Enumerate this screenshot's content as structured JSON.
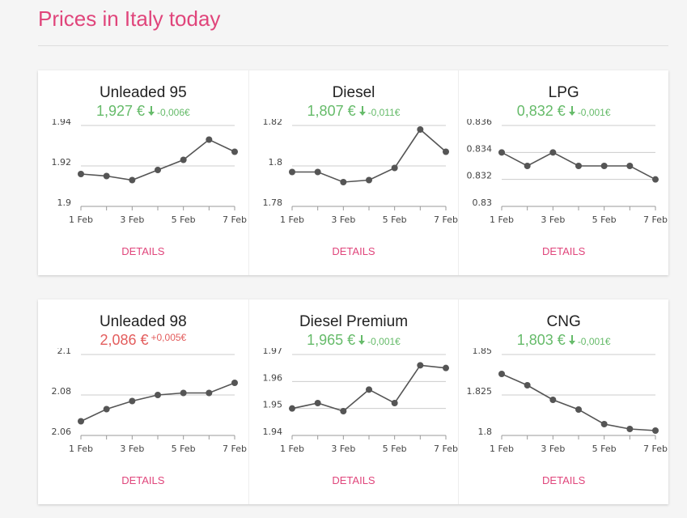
{
  "page": {
    "title": "Prices in Italy today",
    "title_color": "#e0457b"
  },
  "chart_data": [
    {
      "type": "line",
      "title": "Unleaded 95",
      "price": "1,927 €",
      "change": "-0,006€",
      "trend": "down",
      "price_color": "#66bb6a",
      "color": "#555555",
      "categories": [
        "1 Feb",
        null,
        "3 Feb",
        null,
        "5 Feb",
        null,
        "7 Feb"
      ],
      "values": [
        1.916,
        1.915,
        1.913,
        1.918,
        1.923,
        1.933,
        1.927
      ],
      "ylim": [
        1.9,
        1.94
      ],
      "yticks": [
        1.9,
        1.92,
        1.94
      ],
      "grid": true,
      "button": "DETAILS"
    },
    {
      "type": "line",
      "title": "Diesel",
      "price": "1,807 €",
      "change": "-0,011€",
      "trend": "down",
      "price_color": "#66bb6a",
      "color": "#555555",
      "categories": [
        "1 Feb",
        null,
        "3 Feb",
        null,
        "5 Feb",
        null,
        "7 Feb"
      ],
      "values": [
        1.797,
        1.797,
        1.792,
        1.793,
        1.799,
        1.818,
        1.807
      ],
      "ylim": [
        1.78,
        1.82
      ],
      "yticks": [
        1.78,
        1.8,
        1.82
      ],
      "grid": true,
      "button": "DETAILS"
    },
    {
      "type": "line",
      "title": "LPG",
      "price": "0,832 €",
      "change": "-0,001€",
      "trend": "down",
      "price_color": "#66bb6a",
      "color": "#555555",
      "categories": [
        "1 Feb",
        null,
        "3 Feb",
        null,
        "5 Feb",
        null,
        "7 Feb"
      ],
      "values": [
        0.834,
        0.833,
        0.834,
        0.833,
        0.833,
        0.833,
        0.832
      ],
      "ylim": [
        0.83,
        0.836
      ],
      "yticks": [
        0.83,
        0.832,
        0.834,
        0.836
      ],
      "grid": true,
      "button": "DETAILS"
    },
    {
      "type": "line",
      "title": "Unleaded 98",
      "price": "2,086 €",
      "change": "+0,005€",
      "trend": "up",
      "price_color": "#e35d5d",
      "color": "#555555",
      "categories": [
        "1 Feb",
        null,
        "3 Feb",
        null,
        "5 Feb",
        null,
        "7 Feb"
      ],
      "values": [
        2.067,
        2.073,
        2.077,
        2.08,
        2.081,
        2.081,
        2.086
      ],
      "ylim": [
        2.06,
        2.1
      ],
      "yticks": [
        2.06,
        2.08,
        2.1
      ],
      "grid": true,
      "button": "DETAILS"
    },
    {
      "type": "line",
      "title": "Diesel Premium",
      "price": "1,965 €",
      "change": "-0,001€",
      "trend": "down",
      "price_color": "#66bb6a",
      "color": "#555555",
      "categories": [
        "1 Feb",
        null,
        "3 Feb",
        null,
        "5 Feb",
        null,
        "7 Feb"
      ],
      "values": [
        1.95,
        1.952,
        1.949,
        1.957,
        1.952,
        1.966,
        1.965
      ],
      "ylim": [
        1.94,
        1.97
      ],
      "yticks": [
        1.94,
        1.95,
        1.96,
        1.97
      ],
      "grid": true,
      "button": "DETAILS"
    },
    {
      "type": "line",
      "title": "CNG",
      "price": "1,803 €",
      "change": "-0,001€",
      "trend": "down",
      "price_color": "#66bb6a",
      "color": "#555555",
      "categories": [
        "1 Feb",
        null,
        "3 Feb",
        null,
        "5 Feb",
        null,
        "7 Feb"
      ],
      "values": [
        1.838,
        1.831,
        1.822,
        1.816,
        1.807,
        1.804,
        1.803
      ],
      "ylim": [
        1.8,
        1.85
      ],
      "yticks": [
        1.8,
        1.825,
        1.85
      ],
      "grid": true,
      "button": "DETAILS"
    }
  ]
}
